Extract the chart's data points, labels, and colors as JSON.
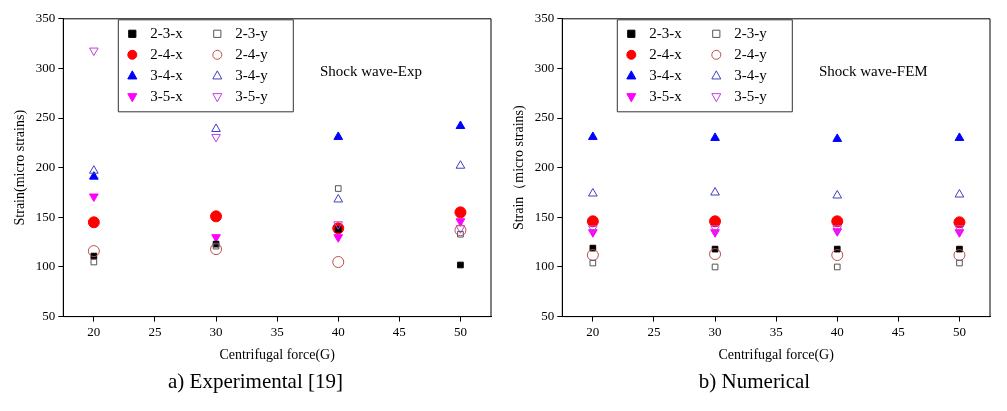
{
  "chart_data": [
    {
      "type": "scatter",
      "title": "Shock wave-Exp",
      "xlabel": "Centrifugal force(G)",
      "ylabel": "Strain(micro strains)",
      "x": [
        20,
        30,
        40,
        50
      ],
      "xlim": [
        17.5,
        52.5
      ],
      "xticks": [
        20,
        25,
        30,
        35,
        40,
        45,
        50
      ],
      "ylim": [
        50,
        350
      ],
      "yticks": [
        50,
        100,
        150,
        200,
        250,
        300,
        350
      ],
      "legend": "top left",
      "grid": false,
      "annotations": [
        "a) Experimental [19]"
      ],
      "series": [
        {
          "name": "2-3-x",
          "color": "#000000",
          "marker": "square",
          "values": [
            111,
            123,
            138,
            102
          ]
        },
        {
          "name": "2-3-y",
          "color": "#555555",
          "marker": "square-open",
          "values": [
            105,
            121,
            179,
            133
          ]
        },
        {
          "name": "2-4-x",
          "color": "#ff0000",
          "marker": "circle",
          "values": [
            145,
            151,
            139,
            155
          ]
        },
        {
          "name": "2-4-y",
          "color": "#c0504d",
          "marker": "circle-open",
          "values": [
            116,
            118,
            105,
            137
          ]
        },
        {
          "name": "3-4-x",
          "color": "#0000ff",
          "marker": "triangle",
          "values": [
            191,
            null,
            231,
            242
          ]
        },
        {
          "name": "3-4-y",
          "color": "#4040c0",
          "marker": "triangle-open",
          "values": [
            197,
            239,
            168,
            202
          ]
        },
        {
          "name": "3-5-x",
          "color": "#ff00ff",
          "marker": "triangle-down",
          "values": [
            171,
            130,
            130,
            146
          ]
        },
        {
          "name": "3-5-y",
          "color": "#c040e0",
          "marker": "triangle-down-open",
          "values": [
            318,
            231,
            143,
            139
          ]
        }
      ]
    },
    {
      "type": "scatter",
      "title": "Shock wave-FEM",
      "xlabel": "Centrifugal force(G)",
      "ylabel": "Strain（micro strains)",
      "x": [
        20,
        30,
        40,
        50
      ],
      "xlim": [
        17.5,
        52.5
      ],
      "xticks": [
        20,
        25,
        30,
        35,
        40,
        45,
        50
      ],
      "ylim": [
        50,
        350
      ],
      "yticks": [
        50,
        100,
        150,
        200,
        250,
        300,
        350
      ],
      "legend": "top left",
      "grid": false,
      "annotations": [
        "b) Numerical"
      ],
      "series": [
        {
          "name": "2-3-x",
          "color": "#000000",
          "marker": "square",
          "values": [
            119,
            118,
            118,
            118
          ]
        },
        {
          "name": "2-3-y",
          "color": "#555555",
          "marker": "square-open",
          "values": [
            104,
            100,
            100,
            104
          ]
        },
        {
          "name": "2-4-x",
          "color": "#ff0000",
          "marker": "circle",
          "values": [
            146,
            146,
            146,
            145
          ]
        },
        {
          "name": "2-4-y",
          "color": "#c0504d",
          "marker": "circle-open",
          "values": [
            112,
            113,
            112,
            112
          ]
        },
        {
          "name": "3-4-x",
          "color": "#0000ff",
          "marker": "triangle",
          "values": [
            231,
            230,
            229,
            230
          ]
        },
        {
          "name": "3-4-y",
          "color": "#4040c0",
          "marker": "triangle-open",
          "values": [
            174,
            175,
            172,
            173
          ]
        },
        {
          "name": "3-5-x",
          "color": "#ff00ff",
          "marker": "triangle-down",
          "values": [
            135,
            135,
            136,
            135
          ]
        },
        {
          "name": "3-5-y",
          "color": "#c040e0",
          "marker": "triangle-down-open",
          "values": [
            139,
            139,
            139,
            139
          ]
        }
      ]
    }
  ]
}
